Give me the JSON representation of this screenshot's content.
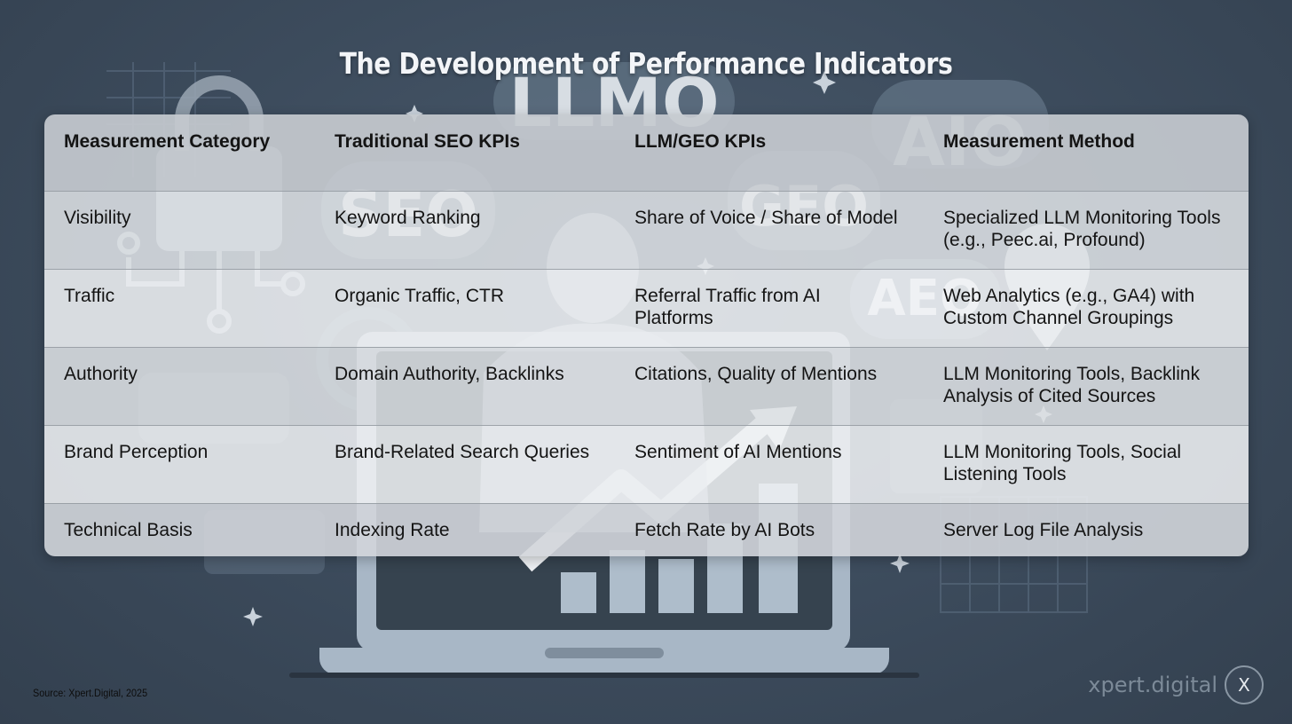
{
  "title": "The Development of Performance Indicators",
  "background_words": [
    "LLMO",
    "AIO",
    "SEO",
    "GEO",
    "AEO"
  ],
  "table": {
    "headers": [
      "Measurement Category",
      "Traditional SEO KPIs",
      "LLM/GEO KPIs",
      "Measurement Method"
    ],
    "rows": [
      [
        "Visibility",
        "Keyword Ranking",
        "Share of Voice / Share of Model",
        "Specialized LLM Monitoring Tools (e.g., Peec.ai, Profound)"
      ],
      [
        "Traffic",
        "Organic Traffic, CTR",
        "Referral Traffic from AI Platforms",
        "Web Analytics (e.g., GA4) with Custom Channel Groupings"
      ],
      [
        "Authority",
        "Domain Authority, Backlinks",
        "Citations, Quality of Mentions",
        "LLM Monitoring Tools, Backlink Analysis of Cited Sources"
      ],
      [
        "Brand Perception",
        "Brand-Related Search Queries",
        "Sentiment of AI Mentions",
        "LLM Monitoring Tools, Social Listening Tools"
      ],
      [
        "Technical Basis",
        "Indexing Rate",
        "Fetch Rate by AI Bots",
        "Server Log File Analysis"
      ]
    ]
  },
  "footer": {
    "source": "Source: Xpert.Digital, 2025",
    "brand": "xpert.digital",
    "logo_letter": "X"
  },
  "colors": {
    "background": "#3c4b5c",
    "title": "#f3f5f8",
    "table_header": "#c6cacf",
    "table_row": "#e0e3e7"
  }
}
